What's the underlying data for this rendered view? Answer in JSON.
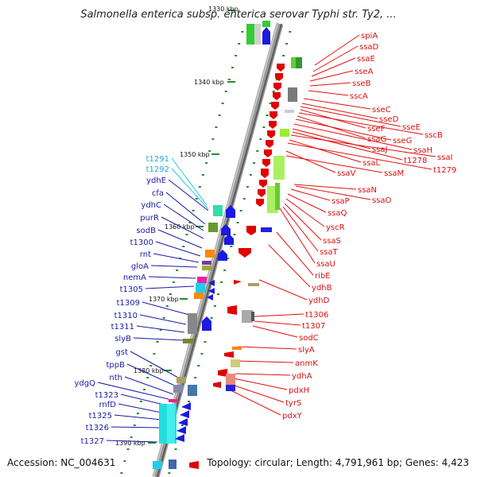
{
  "title": "Salmonella enterica subsp. enterica serovar Typhi str. Ty2, ...",
  "footer": {
    "accession": "Accession: NC_004631",
    "topology": "Topology: circular; Length: 4,791,961 bp; Genes: 4,423"
  },
  "axis": {
    "ticks": [
      "1330 kbp",
      "1340 kbp",
      "1350 kbp",
      "1360 kbp",
      "1370 kbp",
      "1380 kbp",
      "1390 kbp"
    ]
  },
  "colors": {
    "left_labels": "#1a1aa6",
    "right_labels": "#d81010",
    "highlight_labels": "#22a8d8",
    "backbone": "#8c8c8c"
  },
  "left_labels": [
    {
      "text": "t1291",
      "highlight": true
    },
    {
      "text": "t1292",
      "highlight": true
    },
    {
      "text": "ydhE"
    },
    {
      "text": "cfa"
    },
    {
      "text": "ydhC"
    },
    {
      "text": "purR"
    },
    {
      "text": "sodB"
    },
    {
      "text": "t1300"
    },
    {
      "text": "rnt"
    },
    {
      "text": "gloA"
    },
    {
      "text": "nemA"
    },
    {
      "text": "t1305"
    },
    {
      "text": "t1309"
    },
    {
      "text": "t1310"
    },
    {
      "text": "t1311"
    },
    {
      "text": "slyB"
    },
    {
      "text": "gst"
    },
    {
      "text": "tppB"
    },
    {
      "text": "nth"
    },
    {
      "text": "ydgQ"
    },
    {
      "text": "t1323"
    },
    {
      "text": "rnfD"
    },
    {
      "text": "t1325"
    },
    {
      "text": "t1326"
    },
    {
      "text": "t1327"
    }
  ],
  "right_labels": [
    {
      "text": "spiA"
    },
    {
      "text": "ssaD"
    },
    {
      "text": "ssaE"
    },
    {
      "text": "sseA"
    },
    {
      "text": "sseB"
    },
    {
      "text": "sscA"
    },
    {
      "text": "sseC"
    },
    {
      "text": "sseD"
    },
    {
      "text": "sseE"
    },
    {
      "text": "sseF"
    },
    {
      "text": "sscB"
    },
    {
      "text": "ssaG"
    },
    {
      "text": "sseG"
    },
    {
      "text": "ssaH"
    },
    {
      "text": "ssaJ"
    },
    {
      "text": "t1278"
    },
    {
      "text": "ssaI"
    },
    {
      "text": "ssaL"
    },
    {
      "text": "t1279"
    },
    {
      "text": "ssaV"
    },
    {
      "text": "ssaM"
    },
    {
      "text": "ssaN"
    },
    {
      "text": "ssaP"
    },
    {
      "text": "ssaO"
    },
    {
      "text": "ssaQ"
    },
    {
      "text": "yscR"
    },
    {
      "text": "ssaS"
    },
    {
      "text": "ssaT"
    },
    {
      "text": "ssaU"
    },
    {
      "text": "ribE"
    },
    {
      "text": "ydhB"
    },
    {
      "text": "ydhD"
    },
    {
      "text": "t1306"
    },
    {
      "text": "t1307"
    },
    {
      "text": "sodC"
    },
    {
      "text": "slyA"
    },
    {
      "text": "anmK"
    },
    {
      "text": "ydhA"
    },
    {
      "text": "pdxH"
    },
    {
      "text": "tyrS"
    },
    {
      "text": "pdxY"
    }
  ]
}
